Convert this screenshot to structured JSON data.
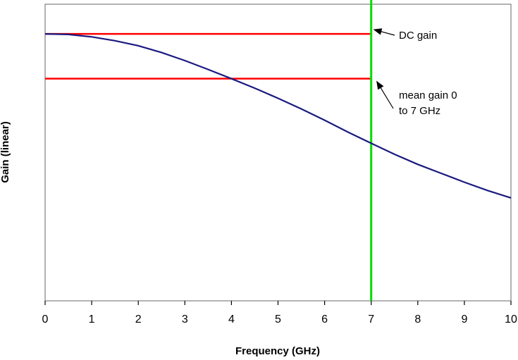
{
  "chart_data": {
    "type": "line",
    "title": "",
    "xlabel": "Frequency (GHz)",
    "ylabel": "Gain (linear)",
    "xlim": [
      0,
      10
    ],
    "ylim": [
      0,
      1
    ],
    "x_ticks": [
      "0",
      "1",
      "2",
      "3",
      "4",
      "5",
      "6",
      "7",
      "8",
      "9",
      "10"
    ],
    "grid": false,
    "legend": "none",
    "series": [
      {
        "color": "#1a1a80",
        "x": [
          0,
          0.5,
          1,
          1.5,
          2,
          2.5,
          3,
          3.5,
          4,
          4.5,
          5,
          5.5,
          6,
          6.5,
          7,
          7.5,
          8,
          8.5,
          9,
          9.5,
          10
        ],
        "y": [
          0.9,
          0.898,
          0.89,
          0.877,
          0.86,
          0.837,
          0.81,
          0.78,
          0.749,
          0.717,
          0.683,
          0.647,
          0.609,
          0.569,
          0.531,
          0.494,
          0.46,
          0.43,
          0.4,
          0.372,
          0.347
        ]
      }
    ],
    "reference_lines": [
      {
        "orientation": "horizontal",
        "value": 0.9,
        "x_range": [
          0,
          7
        ],
        "color": "#ff0000"
      },
      {
        "orientation": "horizontal",
        "value": 0.749,
        "x_range": [
          0,
          7
        ],
        "color": "#ff0000"
      },
      {
        "orientation": "vertical",
        "value": 7,
        "color": "#00dd00"
      }
    ],
    "annotations": [
      {
        "lines": [
          "DC gain"
        ],
        "target": "horizontal-line-1"
      },
      {
        "lines": [
          "mean gain 0",
          "to 7 GHz"
        ],
        "target": "horizontal-line-2"
      }
    ]
  }
}
